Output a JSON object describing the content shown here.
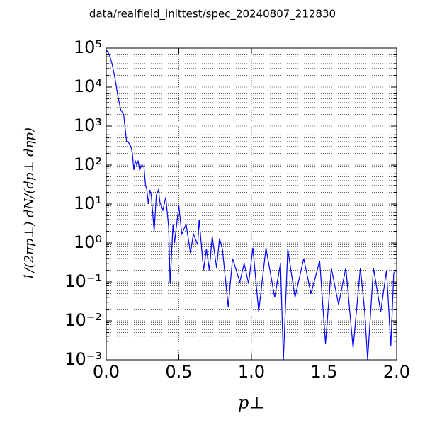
{
  "chart_data": {
    "type": "line",
    "title": "data/realfield_inittest/spec_20240807_212830",
    "x_label": "p⊥",
    "y_label": "1/(2πp⊥) dN/(dp⊥ dηp)",
    "log_y": true,
    "grid": true,
    "xlim": [
      0,
      2
    ],
    "ylim": [
      0.001,
      100000
    ],
    "xticks": [
      {
        "value": 0,
        "label": "0.0"
      },
      0.5,
      {
        "value": 1,
        "label": "1.0"
      },
      1.5,
      {
        "value": 2,
        "label": "2.0"
      }
    ],
    "yticks": [
      {
        "value": 0.001,
        "label": "10⁻³"
      },
      {
        "value": 0.01,
        "label": "10⁻²"
      },
      {
        "value": 0.1,
        "label": "10⁻¹"
      },
      {
        "value": 1,
        "label": "10⁰"
      },
      {
        "value": 10,
        "label": "10¹"
      },
      {
        "value": 100,
        "label": "10²"
      },
      {
        "value": 1000,
        "label": "10³"
      },
      {
        "value": 10000,
        "label": "10⁴"
      },
      {
        "value": 100000,
        "label": "10⁵"
      }
    ],
    "series": [
      {
        "color": "#0000ff",
        "x": [
          0,
          0.02,
          0.04,
          0.06,
          0.08,
          0.1,
          0.12,
          0.13,
          0.14,
          0.15,
          0.17,
          0.18,
          0.19,
          0.2,
          0.21,
          0.22,
          0.23,
          0.245,
          0.26,
          0.27,
          0.28,
          0.29,
          0.3,
          0.31,
          0.33,
          0.345,
          0.36,
          0.37,
          0.39,
          0.41,
          0.43,
          0.44,
          0.46,
          0.47,
          0.5,
          0.52,
          0.55,
          0.58,
          0.6,
          0.63,
          0.64,
          0.67,
          0.69,
          0.71,
          0.73,
          0.76,
          0.78,
          0.8,
          0.84,
          0.87,
          0.92,
          0.95,
          0.98,
          1.01,
          1.05,
          1.1,
          1.16,
          1.2,
          1.22,
          1.25,
          1.3,
          1.36,
          1.41,
          1.47,
          1.51,
          1.55,
          1.6,
          1.65,
          1.7,
          1.75,
          1.78,
          1.8,
          1.84,
          1.89,
          1.93,
          1.96,
          1.98,
          2.0
        ],
        "values": [
          90000,
          70000,
          40000,
          17000,
          6000,
          2600,
          2000,
          900,
          400,
          400,
          300,
          200,
          75,
          130,
          100,
          130,
          75,
          100,
          90,
          32,
          23,
          10,
          23,
          17,
          2,
          17,
          23,
          11,
          7,
          15,
          2.5,
          0.09,
          3,
          1,
          9,
          1.7,
          3,
          0.55,
          1.7,
          0.9,
          4,
          0.2,
          0.7,
          0.2,
          1.5,
          0.23,
          1.3,
          0.7,
          0.023,
          0.4,
          0.1,
          0.3,
          0.09,
          0.75,
          0.017,
          0.75,
          0.04,
          0.3,
          0.001,
          0.7,
          0.04,
          0.4,
          0.05,
          0.35,
          0.0026,
          0.23,
          0.026,
          0.23,
          0.002,
          0.23,
          0.017,
          0.001,
          0.23,
          0.017,
          0.2,
          0.0023,
          0.17,
          0.2
        ]
      }
    ]
  }
}
